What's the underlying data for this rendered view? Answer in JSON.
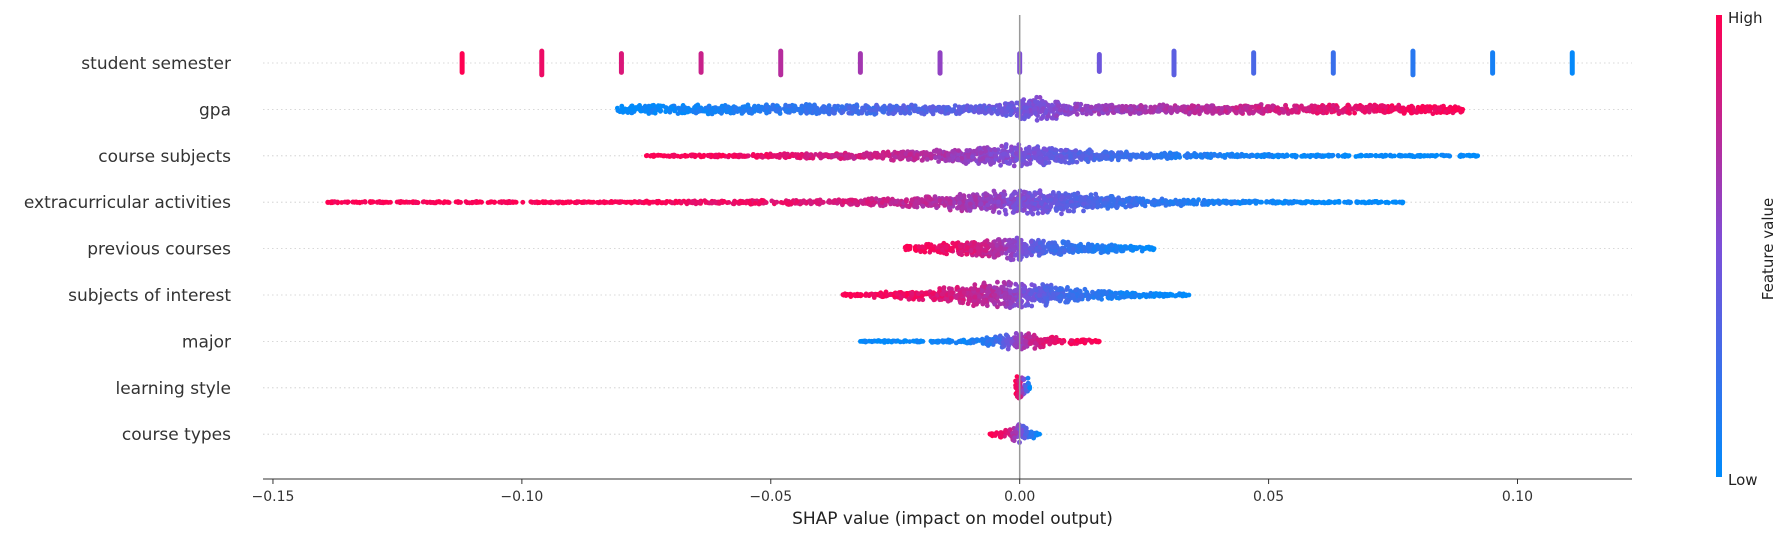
{
  "chart_data": {
    "type": "scatter",
    "subtype": "shap-beeswarm",
    "title": "",
    "xlabel": "SHAP value (impact on model output)",
    "xlim": [
      -0.152,
      0.123
    ],
    "xticks": [
      -0.15,
      -0.1,
      -0.05,
      0.0,
      0.05,
      0.1
    ],
    "xtick_labels": [
      "−0.15",
      "−0.10",
      "−0.05",
      "0.00",
      "0.05",
      "0.10"
    ],
    "colorbar": {
      "label": "Feature value",
      "high_label": "High",
      "low_label": "Low",
      "high_color": "#ff0052",
      "low_color": "#008bfb"
    },
    "grid": "horizontal dotted row lines",
    "features": [
      {
        "name": "student semester",
        "kind": "discrete",
        "x": [
          -0.112,
          -0.096,
          -0.08,
          -0.064,
          -0.048,
          -0.032,
          -0.016,
          0.0,
          0.016,
          0.031,
          0.047,
          0.063,
          0.079,
          0.095,
          0.111
        ],
        "feature_value": [
          1.0,
          0.93,
          0.86,
          0.79,
          0.72,
          0.65,
          0.58,
          0.51,
          0.44,
          0.37,
          0.3,
          0.23,
          0.16,
          0.09,
          0.02
        ],
        "spread": [
          0.55,
          0.7,
          0.55,
          0.55,
          0.7,
          0.55,
          0.6,
          0.55,
          0.5,
          0.7,
          0.6,
          0.6,
          0.7,
          0.6,
          0.6
        ]
      },
      {
        "name": "gpa",
        "kind": "dense",
        "x": [
          -0.081,
          -0.07,
          -0.06,
          -0.05,
          -0.04,
          -0.03,
          -0.02,
          -0.01,
          -0.003,
          0.0,
          0.003,
          0.01,
          0.02,
          0.03,
          0.04,
          0.05,
          0.06,
          0.07,
          0.08,
          0.089
        ],
        "feature_value": [
          0.0,
          0.05,
          0.1,
          0.16,
          0.22,
          0.28,
          0.33,
          0.38,
          0.42,
          0.45,
          0.5,
          0.56,
          0.62,
          0.68,
          0.74,
          0.8,
          0.86,
          0.92,
          0.97,
          1.0
        ],
        "spread": [
          0.25,
          0.3,
          0.3,
          0.3,
          0.3,
          0.3,
          0.3,
          0.3,
          0.4,
          0.6,
          0.9,
          0.4,
          0.3,
          0.3,
          0.3,
          0.3,
          0.3,
          0.3,
          0.3,
          0.25
        ]
      },
      {
        "name": "course subjects",
        "kind": "dense",
        "x": [
          -0.075,
          -0.065,
          -0.06,
          -0.053,
          -0.045,
          -0.035,
          -0.025,
          -0.015,
          -0.008,
          0.0,
          0.008,
          0.015,
          0.025,
          0.035,
          0.045,
          0.055,
          0.065,
          0.092
        ],
        "feature_value": [
          1.0,
          0.97,
          0.95,
          0.92,
          0.88,
          0.82,
          0.76,
          0.66,
          0.58,
          0.5,
          0.4,
          0.3,
          0.2,
          0.12,
          0.08,
          0.04,
          0.02,
          0.0
        ],
        "spread": [
          0.05,
          0.08,
          0.1,
          0.12,
          0.15,
          0.2,
          0.28,
          0.4,
          0.55,
          0.75,
          0.55,
          0.35,
          0.22,
          0.15,
          0.1,
          0.08,
          0.06,
          0.05
        ]
      },
      {
        "name": "extracurricular activities",
        "kind": "dense",
        "x": [
          -0.139,
          -0.087,
          -0.081,
          -0.073,
          -0.067,
          -0.055,
          -0.045,
          -0.035,
          -0.025,
          -0.015,
          -0.008,
          0.0,
          0.008,
          0.015,
          0.025,
          0.035,
          0.045,
          0.051,
          0.068,
          0.077
        ],
        "feature_value": [
          1.0,
          1.0,
          0.98,
          0.97,
          0.95,
          0.92,
          0.88,
          0.84,
          0.78,
          0.7,
          0.62,
          0.52,
          0.4,
          0.3,
          0.2,
          0.12,
          0.07,
          0.04,
          0.02,
          0.0
        ],
        "spread": [
          0.05,
          0.05,
          0.06,
          0.08,
          0.1,
          0.12,
          0.15,
          0.2,
          0.3,
          0.45,
          0.6,
          0.8,
          0.75,
          0.5,
          0.3,
          0.18,
          0.1,
          0.08,
          0.06,
          0.05
        ]
      },
      {
        "name": "previous courses",
        "kind": "dense",
        "x": [
          -0.023,
          -0.018,
          -0.012,
          -0.007,
          -0.003,
          0.0,
          0.003,
          0.007,
          0.012,
          0.018,
          0.023,
          0.027
        ],
        "feature_value": [
          1.0,
          0.95,
          0.88,
          0.78,
          0.65,
          0.5,
          0.38,
          0.28,
          0.18,
          0.1,
          0.05,
          0.0
        ],
        "spread": [
          0.2,
          0.3,
          0.4,
          0.55,
          0.7,
          0.8,
          0.65,
          0.5,
          0.35,
          0.25,
          0.18,
          0.1
        ]
      },
      {
        "name": "subjects of interest",
        "kind": "dense",
        "x": [
          -0.036,
          -0.03,
          -0.024,
          -0.018,
          -0.012,
          -0.006,
          -0.002,
          0.002,
          0.006,
          0.012,
          0.018,
          0.024,
          0.029,
          0.034
        ],
        "feature_value": [
          1.0,
          0.98,
          0.95,
          0.9,
          0.82,
          0.72,
          0.6,
          0.45,
          0.32,
          0.2,
          0.12,
          0.06,
          0.03,
          0.0
        ],
        "spread": [
          0.08,
          0.15,
          0.25,
          0.4,
          0.6,
          0.8,
          0.85,
          0.8,
          0.6,
          0.4,
          0.25,
          0.15,
          0.1,
          0.08
        ]
      },
      {
        "name": "major",
        "kind": "dense",
        "x": [
          -0.032,
          -0.018,
          -0.012,
          -0.008,
          -0.004,
          -0.001,
          0.002,
          0.005,
          0.009,
          0.013,
          0.016
        ],
        "feature_value": [
          0.0,
          0.03,
          0.06,
          0.12,
          0.25,
          0.55,
          0.75,
          0.88,
          0.94,
          0.97,
          1.0
        ],
        "spread": [
          0.05,
          0.08,
          0.12,
          0.2,
          0.35,
          0.6,
          0.5,
          0.35,
          0.2,
          0.12,
          0.08
        ]
      },
      {
        "name": "learning style",
        "kind": "dense",
        "x": [
          -0.001,
          0.0,
          0.001,
          0.002
        ],
        "feature_value": [
          1.0,
          0.85,
          0.45,
          0.0
        ],
        "spread": [
          0.7,
          0.8,
          0.7,
          0.6
        ]
      },
      {
        "name": "course types",
        "kind": "dense",
        "x": [
          -0.006,
          -0.004,
          -0.002,
          0.0,
          0.002,
          0.004
        ],
        "feature_value": [
          1.0,
          0.95,
          0.8,
          0.5,
          0.2,
          0.0
        ],
        "spread": [
          0.08,
          0.2,
          0.4,
          0.7,
          0.4,
          0.15
        ]
      }
    ]
  }
}
